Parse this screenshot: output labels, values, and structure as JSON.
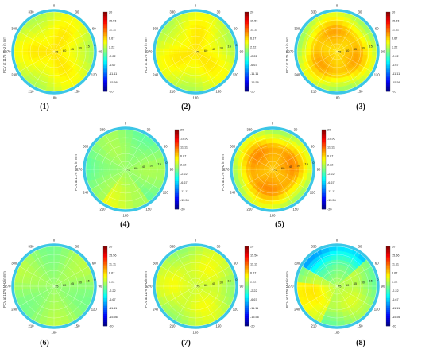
{
  "figure": {
    "colorbar_ticks": [
      "20",
      "15.56",
      "11.11",
      "6.67",
      "2.22",
      "-2.22",
      "-6.67",
      "-11.11",
      "-15.56",
      "-20"
    ],
    "colorbar_range": [
      -20,
      20
    ],
    "ylabel": "PCV at 1176 MHz in mm",
    "azimuth_ticks": [
      "0",
      "30",
      "60",
      "90",
      "120",
      "150",
      "180",
      "210",
      "240",
      "270",
      "300",
      "330"
    ],
    "radial_ticks": [
      "75",
      "60",
      "45",
      "30",
      "15",
      "0"
    ]
  },
  "chart_data": [
    {
      "type": "heatmap",
      "caption": "(1)",
      "projection": "polar",
      "zlim": [
        -20,
        20
      ],
      "base_value": 5,
      "center_value": 6,
      "rim_value": 3
    },
    {
      "type": "heatmap",
      "caption": "(2)",
      "projection": "polar",
      "zlim": [
        -20,
        20
      ],
      "base_value": 5,
      "center_value": 6,
      "rim_value": 3
    },
    {
      "type": "heatmap",
      "caption": "(3)",
      "projection": "polar",
      "zlim": [
        -20,
        20
      ],
      "base_value": 8,
      "center_value": 6,
      "rim_value": 2
    },
    {
      "type": "heatmap",
      "caption": "(4)",
      "projection": "polar",
      "zlim": [
        -20,
        20
      ],
      "base_value": 1,
      "center_value": 1,
      "rim_value": 0
    },
    {
      "type": "heatmap",
      "caption": "(5)",
      "projection": "polar",
      "zlim": [
        -20,
        20
      ],
      "base_value": 9,
      "center_value": 7,
      "rim_value": 2
    },
    {
      "type": "heatmap",
      "caption": "(6)",
      "projection": "polar",
      "zlim": [
        -20,
        20
      ],
      "base_value": 1,
      "center_value": 1,
      "rim_value": 1
    },
    {
      "type": "heatmap",
      "caption": "(7)",
      "projection": "polar",
      "zlim": [
        -20,
        20
      ],
      "base_value": 4,
      "center_value": 3,
      "rim_value": 2
    },
    {
      "type": "heatmap",
      "caption": "(8)",
      "projection": "polar",
      "zlim": [
        -20,
        20
      ],
      "base_value": 3,
      "center_value": 2,
      "rim_value": 0
    }
  ]
}
